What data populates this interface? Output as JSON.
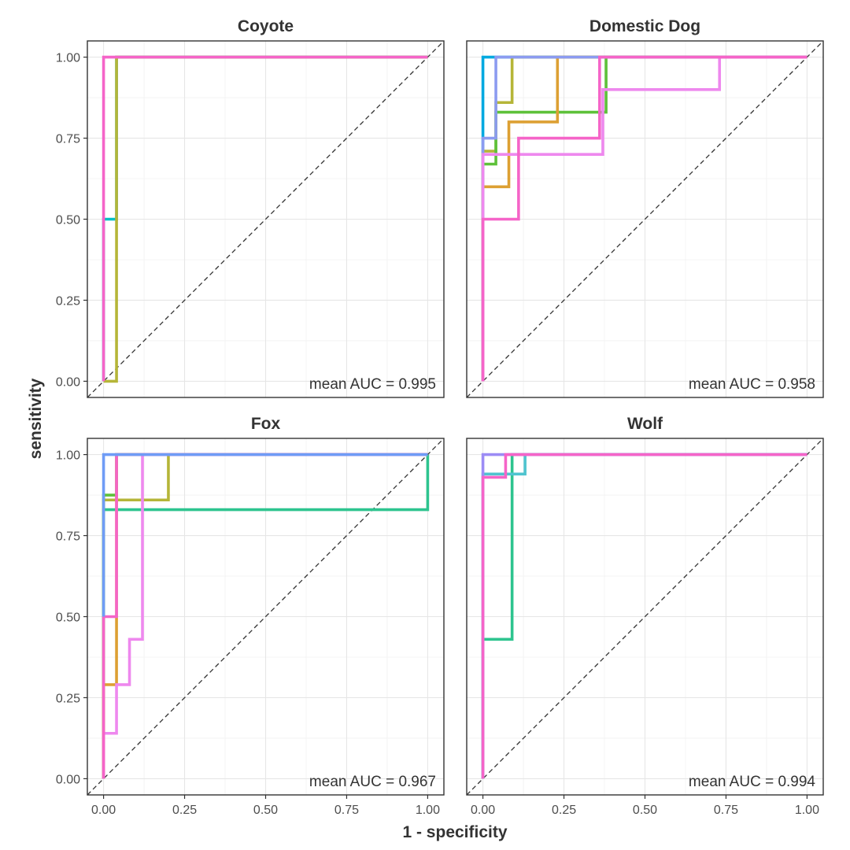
{
  "chart_data": {
    "type": "line",
    "xlabel": "1 - specificity",
    "ylabel": "sensitivity",
    "xlim": [
      -0.05,
      1.05
    ],
    "ylim": [
      -0.05,
      1.05
    ],
    "x_ticks": [
      "0.00",
      "0.25",
      "0.50",
      "0.75",
      "1.00"
    ],
    "y_ticks": [
      "0.00",
      "0.25",
      "0.50",
      "0.75",
      "1.00"
    ],
    "x_tick_values": [
      0,
      0.25,
      0.5,
      0.75,
      1
    ],
    "y_tick_values": [
      0,
      0.25,
      0.5,
      0.75,
      1
    ],
    "grid": true,
    "reference_line": "diagonal",
    "panels": [
      {
        "title": "Coyote",
        "auc_label": "mean AUC = 0.995",
        "series": [
          {
            "color": "#00BFC4",
            "points": [
              [
                0,
                0
              ],
              [
                0,
                0.5
              ],
              [
                0.04,
                0.5
              ],
              [
                0.04,
                1
              ],
              [
                1,
                1
              ]
            ]
          },
          {
            "color": "#B5B538",
            "points": [
              [
                0,
                0
              ],
              [
                0.04,
                0
              ],
              [
                0.04,
                1
              ],
              [
                1,
                1
              ]
            ]
          },
          {
            "color": "#F564C8",
            "points": [
              [
                0,
                0
              ],
              [
                0,
                1
              ],
              [
                1,
                1
              ]
            ]
          }
        ]
      },
      {
        "title": "Domestic Dog",
        "auc_label": "mean AUC = 0.958",
        "series": [
          {
            "color": "#00A9E0",
            "points": [
              [
                0,
                0
              ],
              [
                0,
                1
              ],
              [
                1,
                1
              ]
            ]
          },
          {
            "color": "#B5B538",
            "points": [
              [
                0,
                0
              ],
              [
                0,
                0.71
              ],
              [
                0.04,
                0.71
              ],
              [
                0.04,
                0.86
              ],
              [
                0.09,
                0.86
              ],
              [
                0.09,
                1
              ],
              [
                1,
                1
              ]
            ]
          },
          {
            "color": "#5EC13A",
            "points": [
              [
                0,
                0
              ],
              [
                0,
                0.67
              ],
              [
                0.04,
                0.67
              ],
              [
                0.04,
                0.83
              ],
              [
                0.38,
                0.83
              ],
              [
                0.38,
                1
              ],
              [
                1,
                1
              ]
            ]
          },
          {
            "color": "#DDA033",
            "points": [
              [
                0,
                0
              ],
              [
                0,
                0.6
              ],
              [
                0.08,
                0.6
              ],
              [
                0.08,
                0.8
              ],
              [
                0.23,
                0.8
              ],
              [
                0.23,
                1
              ],
              [
                1,
                1
              ]
            ]
          },
          {
            "color": "#8C9BF0",
            "points": [
              [
                0,
                0
              ],
              [
                0,
                0.75
              ],
              [
                0.04,
                0.75
              ],
              [
                0.04,
                1
              ],
              [
                1,
                1
              ]
            ]
          },
          {
            "color": "#EE88EE",
            "points": [
              [
                0,
                0
              ],
              [
                0,
                0.7
              ],
              [
                0.37,
                0.7
              ],
              [
                0.37,
                0.9
              ],
              [
                0.73,
                0.9
              ],
              [
                0.73,
                1
              ],
              [
                1,
                1
              ]
            ]
          },
          {
            "color": "#F564C8",
            "points": [
              [
                0,
                0
              ],
              [
                0,
                0.5
              ],
              [
                0.11,
                0.5
              ],
              [
                0.11,
                0.75
              ],
              [
                0.36,
                0.75
              ],
              [
                0.36,
                1
              ],
              [
                1,
                1
              ]
            ]
          }
        ]
      },
      {
        "title": "Fox",
        "auc_label": "mean AUC = 0.967",
        "series": [
          {
            "color": "#2EC48F",
            "points": [
              [
                0,
                0
              ],
              [
                0,
                0.83
              ],
              [
                1,
                0.83
              ],
              [
                1,
                1
              ]
            ]
          },
          {
            "color": "#B5B538",
            "points": [
              [
                0,
                0
              ],
              [
                0,
                0.86
              ],
              [
                0.2,
                0.86
              ],
              [
                0.2,
                1
              ],
              [
                1,
                1
              ]
            ]
          },
          {
            "color": "#5EC13A",
            "points": [
              [
                0,
                0
              ],
              [
                0,
                0.875
              ],
              [
                0.04,
                0.875
              ],
              [
                0.04,
                1
              ],
              [
                1,
                1
              ]
            ]
          },
          {
            "color": "#DDA033",
            "points": [
              [
                0,
                0
              ],
              [
                0,
                0.29
              ],
              [
                0.04,
                0.29
              ],
              [
                0.04,
                1
              ],
              [
                1,
                1
              ]
            ]
          },
          {
            "color": "#EE88EE",
            "points": [
              [
                0,
                0
              ],
              [
                0,
                0.14
              ],
              [
                0.04,
                0.14
              ],
              [
                0.04,
                0.29
              ],
              [
                0.08,
                0.29
              ],
              [
                0.08,
                0.43
              ],
              [
                0.12,
                0.43
              ],
              [
                0.12,
                1
              ],
              [
                1,
                1
              ]
            ]
          },
          {
            "color": "#F564C8",
            "points": [
              [
                0,
                0
              ],
              [
                0,
                0.5
              ],
              [
                0.04,
                0.5
              ],
              [
                0.04,
                1
              ],
              [
                0.12,
                1
              ],
              [
                0.12,
                1
              ],
              [
                1,
                1
              ]
            ]
          },
          {
            "color": "#6F9CF6",
            "points": [
              [
                0,
                0.5
              ],
              [
                0,
                1
              ],
              [
                1,
                1
              ]
            ]
          }
        ]
      },
      {
        "title": "Wolf",
        "auc_label": "mean AUC = 0.994",
        "series": [
          {
            "color": "#2EC48F",
            "points": [
              [
                0,
                0
              ],
              [
                0,
                0.43
              ],
              [
                0.09,
                0.43
              ],
              [
                0.09,
                1
              ],
              [
                1,
                1
              ]
            ]
          },
          {
            "color": "#4FC4CF",
            "points": [
              [
                0,
                0
              ],
              [
                0,
                0.94
              ],
              [
                0.13,
                0.94
              ],
              [
                0.13,
                1
              ],
              [
                1,
                1
              ]
            ]
          },
          {
            "color": "#9C8CF5",
            "points": [
              [
                0,
                0
              ],
              [
                0,
                1
              ],
              [
                1,
                1
              ]
            ]
          },
          {
            "color": "#F564C8",
            "points": [
              [
                0,
                0
              ],
              [
                0,
                0.93
              ],
              [
                0.07,
                0.93
              ],
              [
                0.07,
                1
              ],
              [
                1,
                1
              ]
            ]
          }
        ]
      }
    ]
  }
}
